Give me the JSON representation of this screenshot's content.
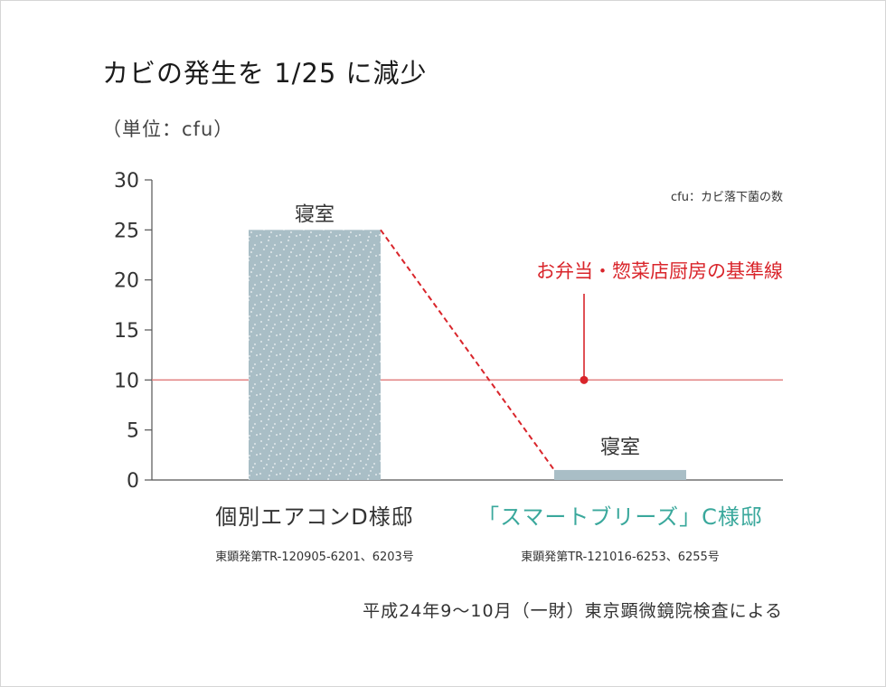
{
  "title": "カビの発生を 1/25 に減少",
  "unit_label": "（単位：cfu）",
  "colors": {
    "bar": "#a9bec6",
    "bar_speckle": "#ffffff",
    "reference_line": "#e07a7a",
    "dashed_line": "#d9252b",
    "annotation": "#d9252b",
    "accent_label": "#3aa89c",
    "axis": "#555555"
  },
  "categories": [
    {
      "label": "個別エアコンD様邸",
      "sublabel": "東顕発第TR-120905-6201、6203号",
      "color": "#333333"
    },
    {
      "label": "「スマートブリーズ」C様邸",
      "sublabel": "東顕発第TR-121016-6253、6255号",
      "color": "#3aa89c"
    }
  ],
  "source": "平成24年9〜10月（一財）東京顕微鏡院検査による",
  "chart_data": {
    "type": "bar",
    "categories": [
      "個別エアコンD様邸",
      "「スマートブリーズ」C様邸"
    ],
    "values": [
      25,
      1
    ],
    "data_labels": [
      "寝室",
      "寝室"
    ],
    "ylim": [
      0,
      30
    ],
    "yticks": [
      0,
      5,
      10,
      15,
      20,
      25,
      30
    ],
    "ylabel": "（単位：cfu）",
    "reference_line": {
      "value": 10,
      "label": "お弁当・惣菜店厨房の基準線"
    },
    "note": "cfu：カビ落下菌の数",
    "connector": "dashed",
    "grid": false
  }
}
